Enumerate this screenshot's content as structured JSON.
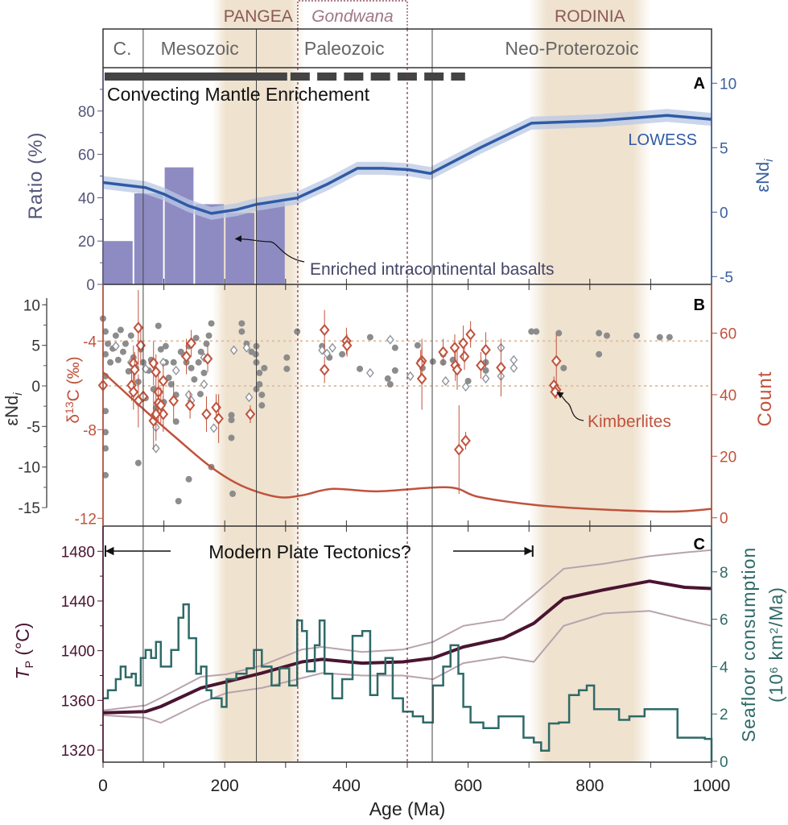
{
  "header": {
    "supercontinents": [
      {
        "label": "PANGEA",
        "range_ma": [
          190,
          320
        ],
        "color": "#8a5a55"
      },
      {
        "label": "RODINIA",
        "range_ma": [
          710,
          890
        ],
        "color": "#8a5a55"
      }
    ],
    "gondwana": {
      "label": "Gondwana",
      "range_ma": [
        320,
        500
      ],
      "color": "#a07888"
    },
    "eras": [
      {
        "label": "C.",
        "range_ma": [
          0,
          66
        ]
      },
      {
        "label": "Mesozoic",
        "range_ma": [
          66,
          252
        ]
      },
      {
        "label": "Paleozoic",
        "range_ma": [
          252,
          541
        ]
      },
      {
        "label": "Neo-Proterozoic",
        "range_ma": [
          541,
          1000
        ]
      }
    ],
    "shade_color": "#efe2cf"
  },
  "colors": {
    "bars": "#8e8bc3",
    "lowess": "#2f5aa5",
    "lowess_band": "#b9c8e4",
    "ratio_axis": "#55557a",
    "end_axis": "#3a5f9e",
    "red": "#c0533d",
    "gray": "#8c8c8c",
    "tp": "#4a1430",
    "tp_band": "#b8a3ad",
    "seafloor": "#2e6a68",
    "ref_line": "#e0c2a4"
  },
  "chart_data": [
    {
      "panel": "A",
      "type": "bar+line",
      "panel_label": "A",
      "mantle_bar_label": "Convecting Mantle Enrichement",
      "mantle_bar": {
        "solid_ma": [
          0,
          300
        ],
        "dashed_ma": [
          300,
          595
        ]
      },
      "xlim": [
        0,
        1000
      ],
      "ylabel_left": "Ratio (%)",
      "ylim_left": [
        0,
        100
      ],
      "yticks_left": [
        0,
        20,
        40,
        60,
        80
      ],
      "ylabel_right": {
        "main": "εNd",
        "sub": "i"
      },
      "ylim_right": [
        -6,
        10.5
      ],
      "yticks_right": [
        -5,
        0,
        5,
        10
      ],
      "bars": {
        "bin_width_ma": 50,
        "bin_starts_ma": [
          0,
          50,
          100,
          150,
          200,
          250
        ],
        "values": [
          20,
          42,
          54,
          37,
          33,
          38
        ]
      },
      "lowess": {
        "name": "LOWESS",
        "x": [
          0,
          70,
          100,
          140,
          178,
          220,
          252,
          319,
          370,
          418,
          460,
          501,
          538,
          620,
          704,
          815,
          927,
          1000
        ],
        "y": [
          2.3,
          1.9,
          1.4,
          0.5,
          -0.1,
          0.2,
          0.6,
          1.1,
          2.2,
          3.4,
          3.4,
          3.3,
          3.0,
          5.0,
          6.9,
          7.1,
          7.5,
          7.2
        ],
        "band": 0.5
      },
      "annotation": {
        "text": "Enriched intracontinental basalts",
        "target_ma": 215,
        "target_ratio": 21
      }
    },
    {
      "panel": "B",
      "type": "scatter+line",
      "panel_label": "B",
      "xlim": [
        0,
        1000
      ],
      "ylabel_left_outer": {
        "main": "εNd",
        "sub": "i"
      },
      "ylim_left_outer": [
        -17,
        12
      ],
      "yticks_left_outer": [
        -15,
        -10,
        -5,
        0,
        5,
        10
      ],
      "ylabel_left_inner": {
        "pre": "δ",
        "sup": "13",
        "post": "C (‰)"
      },
      "yticks_left_inner": [
        -4,
        -8,
        -12
      ],
      "ylabel_right": "Count",
      "yticks_right": [
        0,
        20,
        40,
        60
      ],
      "reference_lines": {
        "d13c": -4,
        "end": 0
      },
      "end_dots": [
        [
          0,
          8.3
        ],
        [
          4,
          6.7
        ],
        [
          8,
          5.2
        ],
        [
          4,
          3.9
        ],
        [
          12,
          2.9
        ],
        [
          4,
          1.2
        ],
        [
          4,
          -3.1
        ],
        [
          4,
          -5.7
        ],
        [
          4,
          -7.7
        ],
        [
          4,
          -11
        ],
        [
          21,
          6.2
        ],
        [
          29,
          6.9
        ],
        [
          33,
          4.2
        ],
        [
          37,
          5.2
        ],
        [
          46,
          6.2
        ],
        [
          50,
          3.5
        ],
        [
          54,
          2.2
        ],
        [
          62,
          4.5
        ],
        [
          66,
          2.9
        ],
        [
          75,
          1.9
        ],
        [
          79,
          3.2
        ],
        [
          83,
          -0.4
        ],
        [
          87,
          -2.7
        ],
        [
          91,
          7.4
        ],
        [
          95,
          4.5
        ],
        [
          103,
          4.9
        ],
        [
          103,
          2.9
        ],
        [
          112,
          0.2
        ],
        [
          116,
          2.9
        ],
        [
          120,
          -1.1
        ],
        [
          120,
          -4.4
        ],
        [
          128,
          4.2
        ],
        [
          137,
          2.9
        ],
        [
          141,
          4.9
        ],
        [
          141,
          -11.5
        ],
        [
          145,
          2.2
        ],
        [
          153,
          5.9
        ],
        [
          157,
          2.9
        ],
        [
          161,
          4.2
        ],
        [
          166,
          1.6
        ],
        [
          170,
          5.2
        ],
        [
          174,
          6.2
        ],
        [
          178,
          7.7
        ],
        [
          178,
          -10
        ],
        [
          124,
          -14.2
        ],
        [
          58,
          -9.5
        ],
        [
          211,
          -3.6
        ],
        [
          211,
          -4.2
        ],
        [
          211,
          -6.4
        ],
        [
          213,
          -13.3
        ],
        [
          228,
          7.7
        ],
        [
          228,
          6.7
        ],
        [
          236,
          5.2
        ],
        [
          244,
          4.2
        ],
        [
          252,
          4.9
        ],
        [
          252,
          2.9
        ],
        [
          257,
          1.6
        ],
        [
          257,
          0.2
        ],
        [
          261,
          -1.1
        ],
        [
          261,
          -2.4
        ],
        [
          265,
          2.2
        ],
        [
          251,
          3.9
        ],
        [
          252,
          -0.4
        ],
        [
          302,
          3.5
        ],
        [
          302,
          2.1
        ],
        [
          319,
          6.7
        ],
        [
          360,
          4.9
        ],
        [
          372,
          3.5
        ],
        [
          393,
          3.9
        ],
        [
          401,
          4.9
        ],
        [
          422,
          2.1
        ],
        [
          439,
          6.0
        ],
        [
          468,
          0.9
        ],
        [
          472,
          0.2
        ],
        [
          480,
          4.7
        ],
        [
          480,
          1.9
        ],
        [
          517,
          5.0
        ],
        [
          525,
          2.2
        ],
        [
          542,
          3.0
        ],
        [
          559,
          3.9
        ],
        [
          559,
          2.9
        ],
        [
          575,
          3.2
        ],
        [
          600,
          0.6
        ],
        [
          629,
          2.9
        ],
        [
          629,
          1.9
        ],
        [
          704,
          6.7
        ],
        [
          712,
          6.7
        ],
        [
          749,
          6.5
        ],
        [
          757,
          2.2
        ],
        [
          815,
          6.5
        ],
        [
          815,
          3.9
        ],
        [
          828,
          6.2
        ],
        [
          877,
          6.2
        ],
        [
          915,
          6.0
        ],
        [
          931,
          6.0
        ],
        [
          16,
          4.6
        ],
        [
          25,
          3.2
        ],
        [
          42,
          1.8
        ],
        [
          58,
          0.5
        ],
        [
          70,
          -1.5
        ],
        [
          100,
          -2.0
        ],
        [
          108,
          1.0
        ],
        [
          133,
          3.8
        ],
        [
          150,
          0.8
        ],
        [
          160,
          -1.0
        ]
      ],
      "end_diamonds": [
        [
          21,
          4.9
        ],
        [
          46,
          2.9
        ],
        [
          70,
          2.1
        ],
        [
          87,
          -5.1
        ],
        [
          87,
          -7.7
        ],
        [
          99,
          2.9
        ],
        [
          120,
          1.9
        ],
        [
          141,
          -1.1
        ],
        [
          145,
          -1.8
        ],
        [
          166,
          0.2
        ],
        [
          166,
          3.5
        ],
        [
          182,
          -5.2
        ],
        [
          215,
          4.4
        ],
        [
          236,
          4.7
        ],
        [
          240,
          -1.4
        ],
        [
          360,
          4.4
        ],
        [
          368,
          4.0
        ],
        [
          377,
          4.7
        ],
        [
          439,
          1.6
        ],
        [
          472,
          5.7
        ],
        [
          505,
          1.2
        ],
        [
          563,
          0.6
        ],
        [
          596,
          -0.1
        ],
        [
          629,
          0.9
        ],
        [
          654,
          4.7
        ],
        [
          654,
          1.2
        ],
        [
          675,
          3.2
        ],
        [
          675,
          2.2
        ]
      ],
      "d13c_points": [
        [
          0,
          -6.0,
          0.6
        ],
        [
          58,
          -3.4,
          1.7
        ],
        [
          62,
          -4.2,
          0.9
        ],
        [
          50,
          -5.0,
          0.8
        ],
        [
          52,
          -5.3,
          0.8
        ],
        [
          47,
          -6.0,
          0.7
        ],
        [
          50,
          -6.3,
          0.8
        ],
        [
          58,
          -6.7,
          1.2
        ],
        [
          66,
          -6.5,
          0.8
        ],
        [
          83,
          -5.0,
          1.0
        ],
        [
          87,
          -5.4,
          0.8
        ],
        [
          91,
          -6.3,
          0.9
        ],
        [
          91,
          -6.8,
          0.8
        ],
        [
          87,
          -7.3,
          1.2
        ],
        [
          83,
          -7.6,
          1.3
        ],
        [
          99,
          -5.8,
          0.8
        ],
        [
          99,
          -7.3,
          0.8
        ],
        [
          95,
          -6.9,
          0.8
        ],
        [
          116,
          -6.7,
          0.9
        ],
        [
          137,
          -4.7,
          0.8
        ],
        [
          145,
          -4.1,
          0.6
        ],
        [
          143,
          -6.9,
          0.6
        ],
        [
          172,
          -4.8,
          0.6
        ],
        [
          170,
          -7.3,
          0.8
        ],
        [
          186,
          -7.0,
          0.6
        ],
        [
          190,
          -7.5,
          1.1
        ],
        [
          242,
          -7.3,
          0.4
        ],
        [
          364,
          -3.5,
          0.9
        ],
        [
          364,
          -5.3,
          0.6
        ],
        [
          400,
          -4.0,
          0.6
        ],
        [
          401,
          -4.2,
          0.5
        ],
        [
          524,
          -4.9,
          1.0
        ],
        [
          522,
          -5.0,
          0.6
        ],
        [
          524,
          -5.7,
          1.4
        ],
        [
          559,
          -4.5,
          0.6
        ],
        [
          578,
          -4.3,
          0.6
        ],
        [
          579,
          -5.1,
          0.7
        ],
        [
          582,
          -5.3,
          0.9
        ],
        [
          594,
          -4.7,
          0.6
        ],
        [
          592,
          -4.1,
          0.8
        ],
        [
          604,
          -3.7,
          0.6
        ],
        [
          585,
          -8.9,
          2.0
        ],
        [
          596,
          -8.5,
          0.4
        ],
        [
          621,
          -5.1,
          0.6
        ],
        [
          629,
          -4.4,
          0.8
        ],
        [
          654,
          -5.2,
          1.3
        ],
        [
          745,
          -4.9,
          1.2
        ],
        [
          741,
          -6.0,
          0.4
        ],
        [
          745,
          -6.2,
          0.4
        ],
        [
          743,
          -6.3,
          0.3
        ]
      ],
      "count_curve": {
        "x": [
          0,
          70,
          120,
          178,
          228,
          286,
          327,
          377,
          451,
          567,
          617,
          708,
          799,
          931,
          1000
        ],
        "y": [
          47.3,
          34.7,
          26,
          16.4,
          10.4,
          6.8,
          7.3,
          9.4,
          8.6,
          9.9,
          6.8,
          4.2,
          2.9,
          2.0,
          2.9
        ]
      },
      "annotation": {
        "text": "Kimberlites",
        "target_ma": 742,
        "target_d13c": -6.2
      }
    },
    {
      "panel": "C",
      "type": "line",
      "panel_label": "C",
      "xlabel": "Age (Ma)",
      "xlim": [
        0,
        1000
      ],
      "xticks": [
        0,
        200,
        400,
        600,
        800,
        1000
      ],
      "ylabel_left": {
        "main": "T",
        "sub": "P",
        "post": " (°C)"
      },
      "ylim_left": [
        1310,
        1492
      ],
      "yticks_left": [
        1320,
        1360,
        1400,
        1440,
        1480
      ],
      "ylabel_right": {
        "line1": "Seafloor consumption",
        "line2_pre": "(10",
        "line2_sup": "6",
        "line2_mid": " km",
        "line2_sup2": "2",
        "line2_post": "/Ma)"
      },
      "ylim_right": [
        0,
        9
      ],
      "yticks_right": [
        0,
        2,
        4,
        6,
        8
      ],
      "tectonics_label": "Modern Plate Tectonics?",
      "tectonics_range_ma": [
        0,
        710
      ],
      "tp": {
        "x": [
          0,
          70,
          95,
          161,
          203,
          261,
          327,
          360,
          426,
          493,
          542,
          592,
          658,
          708,
          757,
          823,
          898,
          956,
          1000
        ],
        "y": [
          1350,
          1351,
          1355,
          1370,
          1375,
          1382,
          1391,
          1393,
          1390,
          1391,
          1394,
          1403,
          1410,
          1422,
          1442,
          1449,
          1456,
          1451,
          1450
        ],
        "upper": [
          1352,
          1356,
          1362,
          1379,
          1381,
          1388,
          1401,
          1403,
          1399,
          1401,
          1407,
          1420,
          1425,
          1445,
          1466,
          1470,
          1476,
          1479,
          1481
        ],
        "lower": [
          1348,
          1346,
          1342,
          1358,
          1366,
          1370,
          1378,
          1382,
          1380,
          1380,
          1377,
          1390,
          1395,
          1391,
          1420,
          1430,
          1432,
          1425,
          1420
        ]
      },
      "seafloor": {
        "x": [
          0,
          8,
          21,
          29,
          37,
          47,
          54,
          62,
          70,
          79,
          87,
          95,
          112,
          124,
          132,
          141,
          153,
          161,
          170,
          178,
          195,
          203,
          219,
          236,
          248,
          261,
          277,
          290,
          306,
          319,
          327,
          335,
          348,
          356,
          364,
          377,
          393,
          410,
          426,
          439,
          451,
          464,
          476,
          493,
          509,
          526,
          542,
          559,
          571,
          584,
          592,
          604,
          625,
          650,
          675,
          691,
          708,
          720,
          733,
          749,
          766,
          782,
          795,
          807,
          832,
          848,
          865,
          890,
          931,
          944,
          989,
          1000
        ],
        "y": [
          2.66,
          3.0,
          3.47,
          4.0,
          3.55,
          3.7,
          3.2,
          4.36,
          4.7,
          4.36,
          5.04,
          4.0,
          4.7,
          6.06,
          6.63,
          5.2,
          3.7,
          4.0,
          3.0,
          2.66,
          2.3,
          3.47,
          3.7,
          3.93,
          4.7,
          4.0,
          3.2,
          3.93,
          3.2,
          5.95,
          5.5,
          3.8,
          4.9,
          5.95,
          3.7,
          2.66,
          3.47,
          5.3,
          5.5,
          2.8,
          3.7,
          4.36,
          2.66,
          2.1,
          1.9,
          1.64,
          3.2,
          4.0,
          4.9,
          3.7,
          2.3,
          1.64,
          1.4,
          1.9,
          1.9,
          1.0,
          0.8,
          0.45,
          1.6,
          1.64,
          2.8,
          3.0,
          3.2,
          2.2,
          2.2,
          1.75,
          1.9,
          2.2,
          2.2,
          1.0,
          0.95,
          0
        ]
      }
    }
  ],
  "boundaries": {
    "solid_ma": [
      66,
      252,
      541
    ],
    "dashed_ma": [
      320,
      500
    ]
  }
}
